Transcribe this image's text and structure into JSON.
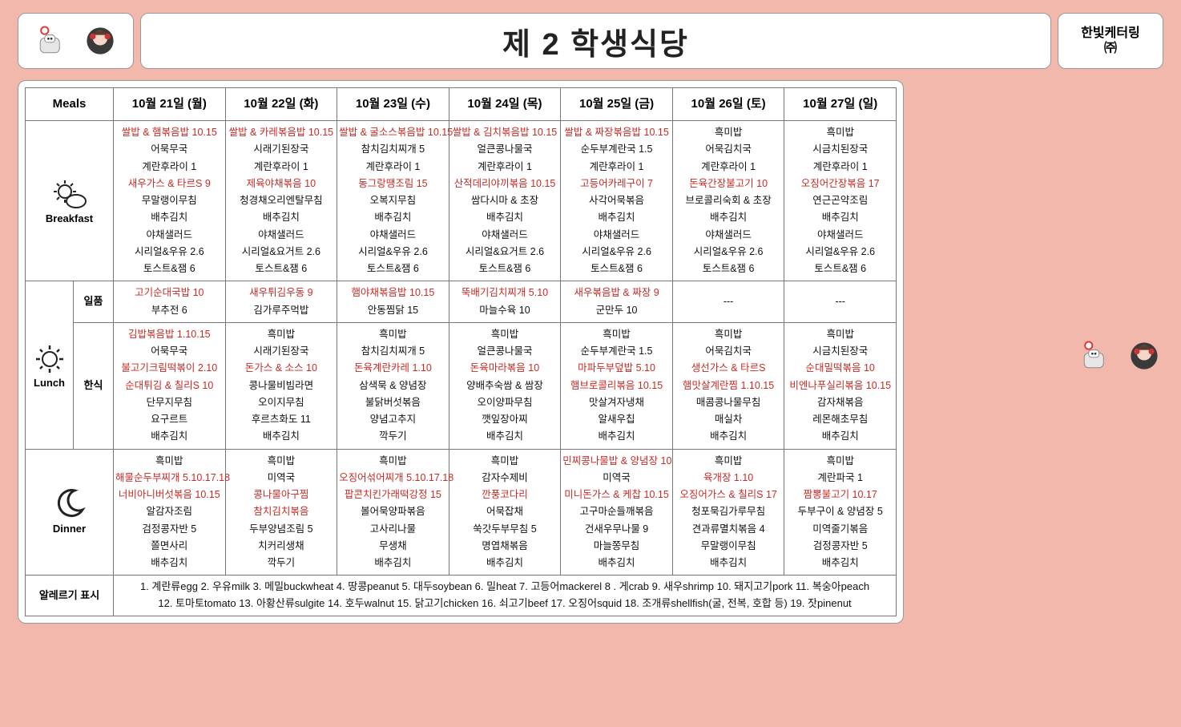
{
  "header": {
    "title": "제 2 학생식당",
    "vendor_line1": "한빛케터링",
    "vendor_line2": "㈜"
  },
  "table": {
    "days_header": "Meals",
    "days": [
      "10월 21일 (월)",
      "10월 22일 (화)",
      "10월 23일 (수)",
      "10월 24일 (목)",
      "10월 25일 (금)",
      "10월 26일 (토)",
      "10월 27일 (일)"
    ],
    "breakfast_label": "Breakfast",
    "lunch_label": "Lunch",
    "lunch_sub1": "일품",
    "lunch_sub2": "한식",
    "dinner_label": "Dinner",
    "allergy_label": "알레르기 표시",
    "allergy_line1": "1. 계란류egg 2. 우유milk 3. 메밀buckwheat 4. 땅콩peanut 5. 대두soybean 6. 밀heat 7. 고등어mackerel 8 . 게crab 9. 새우shrimp 10. 돼지고기pork 11. 복숭아peach",
    "allergy_line2": "12. 토마토tomato 13. 아황산류sulgite 14. 호두walnut 15. 닭고기chicken 16. 쇠고기beef 17. 오징어squid 18. 조개류shellfish(굴, 전복, 호합 등) 19. 잣pinenut",
    "breakfast": [
      [
        {
          "t": "쌀밥 & 햄볶음밥 10.15",
          "r": 1
        },
        {
          "t": "어묵무국",
          "r": 0
        },
        {
          "t": "계란후라이 1",
          "r": 0
        },
        {
          "t": "새우가스 & 타르S 9",
          "r": 1
        },
        {
          "t": "무말랭이무침",
          "r": 0
        },
        {
          "t": "배추김치",
          "r": 0
        },
        {
          "t": "야채샐러드",
          "r": 0
        },
        {
          "t": "시리얼&우유 2.6",
          "r": 0
        },
        {
          "t": "토스트&잼 6",
          "r": 0
        }
      ],
      [
        {
          "t": "쌀밥 & 카레볶음밥 10.15",
          "r": 1
        },
        {
          "t": "시래기된장국",
          "r": 0
        },
        {
          "t": "계란후라이 1",
          "r": 0
        },
        {
          "t": "제육야채볶음 10",
          "r": 1
        },
        {
          "t": "청경채오리엔탈무침",
          "r": 0
        },
        {
          "t": "배추김치",
          "r": 0
        },
        {
          "t": "야채샐러드",
          "r": 0
        },
        {
          "t": "시리얼&요거트 2.6",
          "r": 0
        },
        {
          "t": "토스트&잼 6",
          "r": 0
        }
      ],
      [
        {
          "t": "쌀밥 & 굴소스볶음밥 10.15",
          "r": 1
        },
        {
          "t": "참치김치찌개 5",
          "r": 0
        },
        {
          "t": "계란후라이 1",
          "r": 0
        },
        {
          "t": "동그랑땡조림 15",
          "r": 1
        },
        {
          "t": "오복지무침",
          "r": 0
        },
        {
          "t": "배추김치",
          "r": 0
        },
        {
          "t": "야채샐러드",
          "r": 0
        },
        {
          "t": "시리얼&우유 2.6",
          "r": 0
        },
        {
          "t": "토스트&잼 6",
          "r": 0
        }
      ],
      [
        {
          "t": "쌀밥 & 김치볶음밥 10.15",
          "r": 1
        },
        {
          "t": "얼큰콩나물국",
          "r": 0
        },
        {
          "t": "계란후라이 1",
          "r": 0
        },
        {
          "t": "산적데리야끼볶음 10.15",
          "r": 1
        },
        {
          "t": "쌈다시마 & 초장",
          "r": 0
        },
        {
          "t": "배추김치",
          "r": 0
        },
        {
          "t": "야채샐러드",
          "r": 0
        },
        {
          "t": "시리얼&요거트 2.6",
          "r": 0
        },
        {
          "t": "토스트&잼 6",
          "r": 0
        }
      ],
      [
        {
          "t": "쌀밥 & 짜장볶음밥 10.15",
          "r": 1
        },
        {
          "t": "순두부계란국 1.5",
          "r": 0
        },
        {
          "t": "계란후라이 1",
          "r": 0
        },
        {
          "t": "고등어카레구이 7",
          "r": 1
        },
        {
          "t": "사각어묵볶음",
          "r": 0
        },
        {
          "t": "배추김치",
          "r": 0
        },
        {
          "t": "야채샐러드",
          "r": 0
        },
        {
          "t": "시리얼&우유 2.6",
          "r": 0
        },
        {
          "t": "토스트&잼 6",
          "r": 0
        }
      ],
      [
        {
          "t": "흑미밥",
          "r": 0
        },
        {
          "t": "어묵김치국",
          "r": 0
        },
        {
          "t": "계란후라이 1",
          "r": 0
        },
        {
          "t": "돈육간장불고기 10",
          "r": 1
        },
        {
          "t": "브로콜리숙회 & 초장",
          "r": 0
        },
        {
          "t": "배추김치",
          "r": 0
        },
        {
          "t": "야채샐러드",
          "r": 0
        },
        {
          "t": "시리얼&우유 2.6",
          "r": 0
        },
        {
          "t": "토스트&잼 6",
          "r": 0
        }
      ],
      [
        {
          "t": "흑미밥",
          "r": 0
        },
        {
          "t": "시금치된장국",
          "r": 0
        },
        {
          "t": "계란후라이 1",
          "r": 0
        },
        {
          "t": "오징어간장볶음 17",
          "r": 1
        },
        {
          "t": "연근곤약조림",
          "r": 0
        },
        {
          "t": "배추김치",
          "r": 0
        },
        {
          "t": "야채샐러드",
          "r": 0
        },
        {
          "t": "시리얼&우유 2.6",
          "r": 0
        },
        {
          "t": "토스트&잼 6",
          "r": 0
        }
      ]
    ],
    "lunch_ilpum": [
      [
        {
          "t": "고기순대국밥 10",
          "r": 1
        },
        {
          "t": "부추전 6",
          "r": 0
        }
      ],
      [
        {
          "t": "새우튀김우동 9",
          "r": 1
        },
        {
          "t": "김가루주먹밥",
          "r": 0
        }
      ],
      [
        {
          "t": "햄야채볶음밥 10.15",
          "r": 1
        },
        {
          "t": "안동찜닭 15",
          "r": 0
        }
      ],
      [
        {
          "t": "뚝배기김치찌개 5.10",
          "r": 1
        },
        {
          "t": "마늘수육 10",
          "r": 0
        }
      ],
      [
        {
          "t": "새우볶음밥 & 짜장 9",
          "r": 1
        },
        {
          "t": "군만두 10",
          "r": 0
        }
      ],
      [
        {
          "t": "---",
          "r": 0
        }
      ],
      [
        {
          "t": "---",
          "r": 0
        }
      ]
    ],
    "lunch_hansik": [
      [
        {
          "t": "김밥볶음밥 1.10.15",
          "r": 1
        },
        {
          "t": "어묵무국",
          "r": 0
        },
        {
          "t": "불고기크림떡볶이 2.10",
          "r": 1
        },
        {
          "t": "순대튀김 & 칠리S 10",
          "r": 1
        },
        {
          "t": "단무지무침",
          "r": 0
        },
        {
          "t": "요구르트",
          "r": 0
        },
        {
          "t": "배추김치",
          "r": 0
        }
      ],
      [
        {
          "t": "흑미밥",
          "r": 0
        },
        {
          "t": "시래기된장국",
          "r": 0
        },
        {
          "t": "돈가스 & 소스 10",
          "r": 1
        },
        {
          "t": "콩나물비빔라면",
          "r": 0
        },
        {
          "t": "오이지무침",
          "r": 0
        },
        {
          "t": "후르츠화도 11",
          "r": 0
        },
        {
          "t": "배추김치",
          "r": 0
        }
      ],
      [
        {
          "t": "흑미밥",
          "r": 0
        },
        {
          "t": "참치김치찌개 5",
          "r": 0
        },
        {
          "t": "돈육계란카레 1.10",
          "r": 1
        },
        {
          "t": "삼색묵 & 양념장",
          "r": 0
        },
        {
          "t": "불닭버섯볶음",
          "r": 0
        },
        {
          "t": "양념고추지",
          "r": 0
        },
        {
          "t": "깍두기",
          "r": 0
        }
      ],
      [
        {
          "t": "흑미밥",
          "r": 0
        },
        {
          "t": "얼큰콩나물국",
          "r": 0
        },
        {
          "t": "돈육마라볶음 10",
          "r": 1
        },
        {
          "t": "양배추숙쌈 & 쌈장",
          "r": 0
        },
        {
          "t": "오이양파무침",
          "r": 0
        },
        {
          "t": "깻잎장아찌",
          "r": 0
        },
        {
          "t": "배추김치",
          "r": 0
        }
      ],
      [
        {
          "t": "흑미밥",
          "r": 0
        },
        {
          "t": "순두부계란국 1.5",
          "r": 0
        },
        {
          "t": "마파두부덮밥 5.10",
          "r": 1
        },
        {
          "t": "햄브로콜리볶음 10.15",
          "r": 1
        },
        {
          "t": "맛살겨자냉채",
          "r": 0
        },
        {
          "t": "알새우칩",
          "r": 0
        },
        {
          "t": "배추김치",
          "r": 0
        }
      ],
      [
        {
          "t": "흑미밥",
          "r": 0
        },
        {
          "t": "어묵김치국",
          "r": 0
        },
        {
          "t": "생선가스 & 타르S",
          "r": 1
        },
        {
          "t": "햄맛살계란찜 1.10.15",
          "r": 1
        },
        {
          "t": "매콤콩나물무침",
          "r": 0
        },
        {
          "t": "매실차",
          "r": 0
        },
        {
          "t": "배추김치",
          "r": 0
        }
      ],
      [
        {
          "t": "흑미밥",
          "r": 0
        },
        {
          "t": "시금치된장국",
          "r": 0
        },
        {
          "t": "순대밀떡볶음 10",
          "r": 1
        },
        {
          "t": "비엔나푸실리볶음 10.15",
          "r": 1
        },
        {
          "t": "감자채볶음",
          "r": 0
        },
        {
          "t": "레몬해초무침",
          "r": 0
        },
        {
          "t": "배추김치",
          "r": 0
        }
      ]
    ],
    "dinner": [
      [
        {
          "t": "흑미밥",
          "r": 0
        },
        {
          "t": "해물순두부찌개 5.10.17.18",
          "r": 1
        },
        {
          "t": "너비아니버섯볶음 10.15",
          "r": 1
        },
        {
          "t": "알감자조림",
          "r": 0
        },
        {
          "t": "검정콩자반 5",
          "r": 0
        },
        {
          "t": "쫄면사리",
          "r": 0
        },
        {
          "t": "배추김치",
          "r": 0
        }
      ],
      [
        {
          "t": "흑미밥",
          "r": 0
        },
        {
          "t": "미역국",
          "r": 0
        },
        {
          "t": "콩나물아구찜",
          "r": 1
        },
        {
          "t": "참치김치볶음",
          "r": 1
        },
        {
          "t": "두부양념조림 5",
          "r": 0
        },
        {
          "t": "치커리생채",
          "r": 0
        },
        {
          "t": "깍두기",
          "r": 0
        }
      ],
      [
        {
          "t": "흑미밥",
          "r": 0
        },
        {
          "t": "오징어섞어찌개 5.10.17.18",
          "r": 1
        },
        {
          "t": "팝콘치킨가래떡강정 15",
          "r": 1
        },
        {
          "t": "볼어묵양파볶음",
          "r": 0
        },
        {
          "t": "고사리나물",
          "r": 0
        },
        {
          "t": "무생채",
          "r": 0
        },
        {
          "t": "배추김치",
          "r": 0
        }
      ],
      [
        {
          "t": "흑미밥",
          "r": 0
        },
        {
          "t": "감자수제비",
          "r": 0
        },
        {
          "t": "깐풍코다리",
          "r": 1
        },
        {
          "t": "어묵잡채",
          "r": 0
        },
        {
          "t": "쑥갓두부무침 5",
          "r": 0
        },
        {
          "t": "명엽채볶음",
          "r": 0
        },
        {
          "t": "배추김치",
          "r": 0
        }
      ],
      [
        {
          "t": "민찌콩나물밥 & 양념장 10",
          "r": 1
        },
        {
          "t": "미역국",
          "r": 0
        },
        {
          "t": "미니돈가스 & 케찹 10.15",
          "r": 1
        },
        {
          "t": "고구마순들깨볶음",
          "r": 0
        },
        {
          "t": "건새우무나물 9",
          "r": 0
        },
        {
          "t": "마늘쫑무침",
          "r": 0
        },
        {
          "t": "배추김치",
          "r": 0
        }
      ],
      [
        {
          "t": "흑미밥",
          "r": 0
        },
        {
          "t": "육개장 1.10",
          "r": 1
        },
        {
          "t": "오징어가스 & 칠리S 17",
          "r": 1
        },
        {
          "t": "청포묵김가루무침",
          "r": 0
        },
        {
          "t": "견과류멸치볶음 4",
          "r": 0
        },
        {
          "t": "무말랭이무침",
          "r": 0
        },
        {
          "t": "배추김치",
          "r": 0
        }
      ],
      [
        {
          "t": "흑미밥",
          "r": 0
        },
        {
          "t": "계란파국 1",
          "r": 0
        },
        {
          "t": "짬뽕불고기 10.17",
          "r": 1
        },
        {
          "t": "두부구이 & 양념장 5",
          "r": 0
        },
        {
          "t": "미역줄기볶음",
          "r": 0
        },
        {
          "t": "검정콩자반 5",
          "r": 0
        },
        {
          "t": "배추김치",
          "r": 0
        }
      ]
    ]
  }
}
